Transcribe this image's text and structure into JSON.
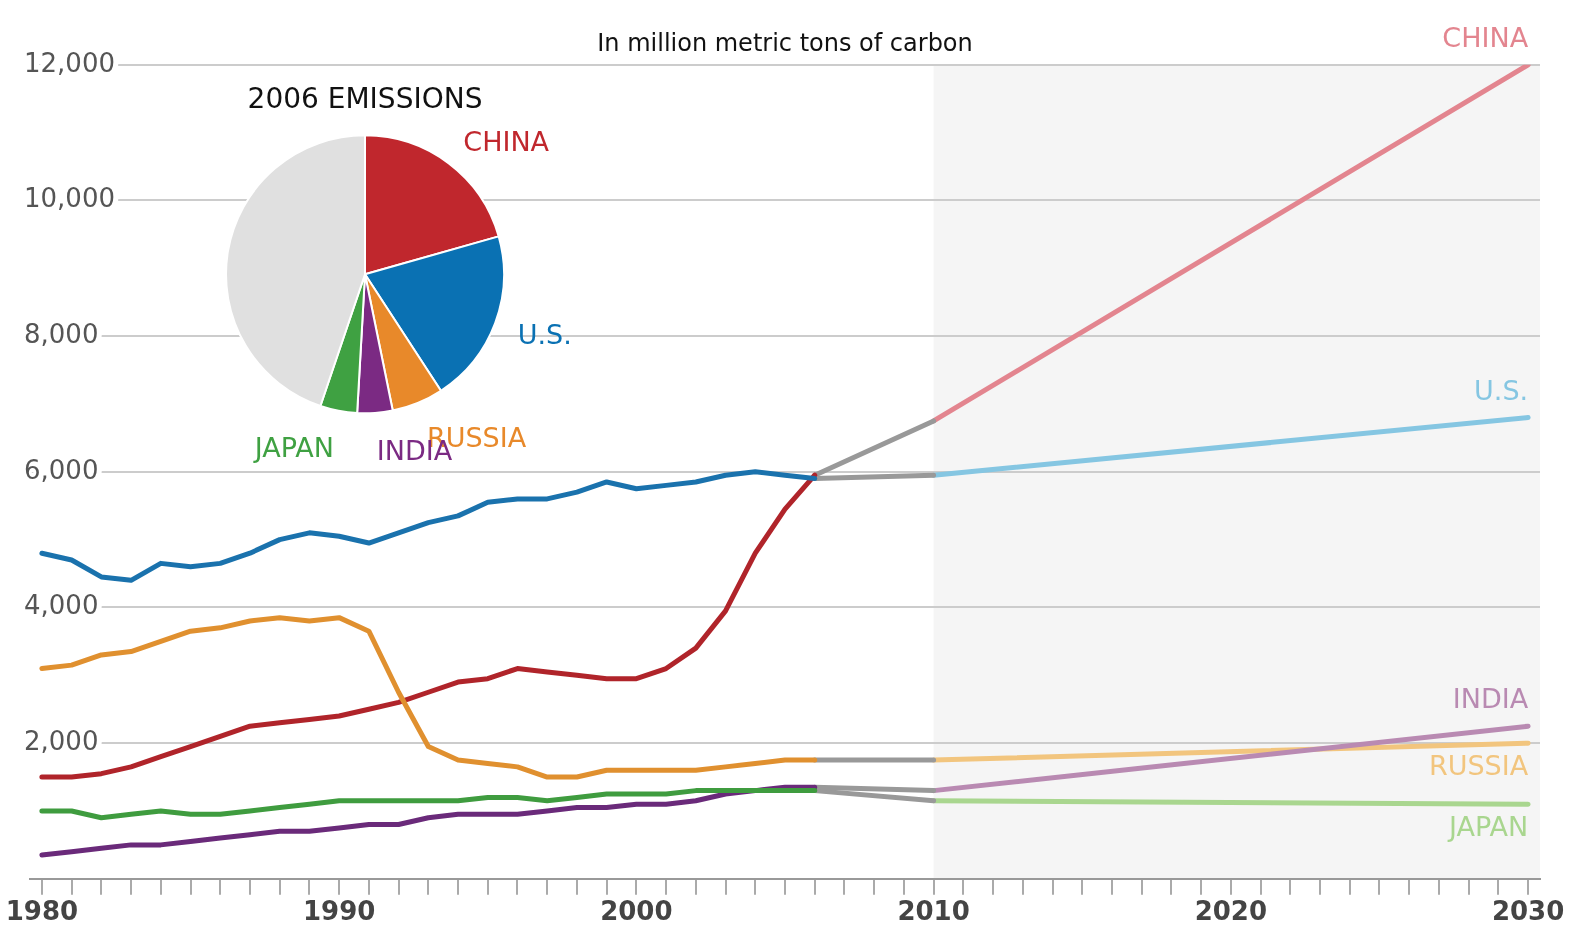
{
  "chart_data": [
    {
      "type": "line",
      "subtitle": "In million metric tons of carbon",
      "xlim": [
        1979.6,
        2030.4
      ],
      "ylim": [
        0,
        12000
      ],
      "xticks": [
        1980,
        {
          "value": 1981,
          "label": null
        },
        {
          "value": 1982,
          "label": null
        },
        {
          "value": 1983,
          "label": null
        },
        {
          "value": 1984,
          "label": null
        },
        {
          "value": 1985,
          "label": null
        },
        {
          "value": 1986,
          "label": null
        },
        {
          "value": 1987,
          "label": null
        },
        {
          "value": 1988,
          "label": null
        },
        {
          "value": 1989,
          "label": null
        },
        1990,
        {
          "value": 1991,
          "label": null
        },
        {
          "value": 1992,
          "label": null
        },
        {
          "value": 1993,
          "label": null
        },
        {
          "value": 1994,
          "label": null
        },
        {
          "value": 1995,
          "label": null
        },
        {
          "value": 1996,
          "label": null
        },
        {
          "value": 1997,
          "label": null
        },
        {
          "value": 1998,
          "label": null
        },
        {
          "value": 1999,
          "label": null
        },
        2000,
        {
          "value": 2001,
          "label": null
        },
        {
          "value": 2002,
          "label": null
        },
        {
          "value": 2003,
          "label": null
        },
        {
          "value": 2004,
          "label": null
        },
        {
          "value": 2005,
          "label": null
        },
        {
          "value": 2006,
          "label": null
        },
        {
          "value": 2007,
          "label": null
        },
        {
          "value": 2008,
          "label": null
        },
        {
          "value": 2009,
          "label": null
        },
        2010,
        {
          "value": 2011,
          "label": null
        },
        {
          "value": 2012,
          "label": null
        },
        {
          "value": 2013,
          "label": null
        },
        {
          "value": 2014,
          "label": null
        },
        {
          "value": 2015,
          "label": null
        },
        {
          "value": 2016,
          "label": null
        },
        {
          "value": 2017,
          "label": null
        },
        {
          "value": 2018,
          "label": null
        },
        {
          "value": 2019,
          "label": null
        },
        2020,
        {
          "value": 2021,
          "label": null
        },
        {
          "value": 2022,
          "label": null
        },
        {
          "value": 2023,
          "label": null
        },
        {
          "value": 2024,
          "label": null
        },
        {
          "value": 2025,
          "label": null
        },
        {
          "value": 2026,
          "label": null
        },
        {
          "value": 2027,
          "label": null
        },
        {
          "value": 2028,
          "label": null
        },
        {
          "value": 2029,
          "label": null
        },
        2030
      ],
      "yticks": [
        {
          "value": 2000,
          "label": "2,000"
        },
        {
          "value": 4000,
          "label": "4,000"
        },
        {
          "value": 6000,
          "label": "6,000"
        },
        {
          "value": 8000,
          "label": "8,000"
        },
        {
          "value": 10000,
          "label": "10,000"
        },
        {
          "value": 12000,
          "label": "12,000"
        }
      ],
      "grid": "y",
      "marker": "none",
      "line_style": "solid",
      "bands": [
        {
          "axis": "x",
          "from": 2010,
          "to": 2030.4,
          "color": "#f5f5f5"
        }
      ],
      "x": [
        1980,
        1981,
        1982,
        1983,
        1984,
        1985,
        1986,
        1987,
        1988,
        1989,
        1990,
        1991,
        1992,
        1993,
        1994,
        1995,
        1996,
        1997,
        1998,
        1999,
        2000,
        2001,
        2002,
        2003,
        2004,
        2005,
        2006
      ],
      "series": [
        {
          "color": "#1a72ad",
          "values": [
            4800,
            4700,
            4450,
            4400,
            4650,
            4600,
            4650,
            4800,
            5000,
            5100,
            5050,
            4950,
            5100,
            5250,
            5350,
            5550,
            5600,
            5600,
            5700,
            5850,
            5750,
            5800,
            5850,
            5950,
            6000,
            5950,
            5900
          ]
        },
        {
          "color": "#e0902f",
          "values": [
            3100,
            3150,
            3300,
            3350,
            3500,
            3650,
            3700,
            3800,
            3850,
            3800,
            3850,
            3650,
            2750,
            1950,
            1750,
            1700,
            1650,
            1500,
            1500,
            1600,
            1600,
            1600,
            1600,
            1650,
            1700,
            1750,
            1750
          ]
        },
        {
          "color": "#b0242a",
          "values": [
            1500,
            1500,
            1550,
            1650,
            1800,
            1950,
            2100,
            2250,
            2300,
            2350,
            2400,
            2500,
            2600,
            2750,
            2900,
            2950,
            3100,
            3050,
            3000,
            2950,
            2950,
            3100,
            3400,
            3950,
            4800,
            5450,
            5950
          ]
        },
        {
          "color": "#3f9c3f",
          "values": [
            1000,
            1000,
            900,
            950,
            1000,
            950,
            950,
            1000,
            1050,
            1100,
            1150,
            1150,
            1150,
            1150,
            1150,
            1200,
            1200,
            1150,
            1200,
            1250,
            1250,
            1250,
            1300,
            1300,
            1300,
            1300,
            1300
          ]
        },
        {
          "color": "#6a2a7a",
          "values": [
            350,
            400,
            450,
            500,
            500,
            550,
            600,
            650,
            700,
            700,
            750,
            800,
            800,
            900,
            950,
            950,
            950,
            1000,
            1050,
            1050,
            1100,
            1100,
            1150,
            1250,
            1300,
            1350,
            1350
          ]
        },
        {
          "color": "#999999",
          "x": [
            2006,
            2010
          ],
          "values": [
            5950,
            6750
          ]
        },
        {
          "color": "#999999",
          "x": [
            2006,
            2010
          ],
          "values": [
            5900,
            5950
          ]
        },
        {
          "color": "#999999",
          "x": [
            2006,
            2010
          ],
          "values": [
            1750,
            1750
          ]
        },
        {
          "color": "#999999",
          "x": [
            2006,
            2010
          ],
          "values": [
            1350,
            1300
          ]
        },
        {
          "color": "#999999",
          "x": [
            2006,
            2010
          ],
          "values": [
            1300,
            1150
          ]
        },
        {
          "name": "CHINA",
          "color": "#e3858f",
          "x": [
            2010,
            2030
          ],
          "values": [
            6750,
            12000
          ]
        },
        {
          "name": "U.S.",
          "color": "#85c6e2",
          "x": [
            2010,
            2030
          ],
          "values": [
            5950,
            6800
          ]
        },
        {
          "name": "INDIA",
          "color": "#b98ab2",
          "x": [
            2010,
            2030
          ],
          "values": [
            1300,
            2250
          ]
        },
        {
          "name": "RUSSIA",
          "color": "#f2c57e",
          "x": [
            2010,
            2030
          ],
          "values": [
            1750,
            2000
          ]
        },
        {
          "name": "JAPAN",
          "color": "#a9d68f",
          "x": [
            2010,
            2030
          ],
          "values": [
            1150,
            1100
          ]
        }
      ]
    },
    {
      "type": "pie",
      "title": "2006 EMISSIONS",
      "categories": [
        "CHINA",
        "U.S.",
        "RUSSIA",
        "INDIA",
        "JAPAN",
        null
      ],
      "values": [
        20.6,
        20.2,
        6.0,
        4.1,
        4.3,
        44.8
      ],
      "colors": [
        "#c0272d",
        "#0a71b3",
        "#e8892a",
        "#7b2a83",
        "#3fa142",
        "#e0e0e0"
      ]
    }
  ]
}
